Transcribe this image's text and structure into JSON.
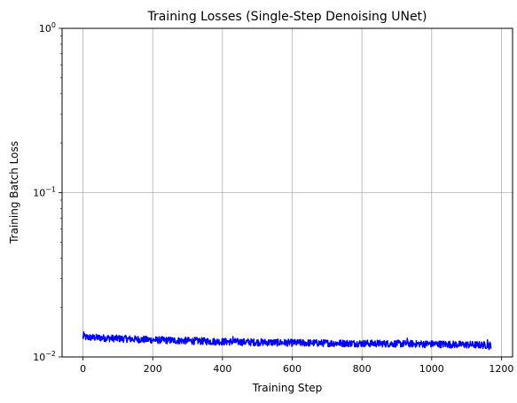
{
  "chart_data": {
    "type": "line",
    "title": "Training Losses (Single-Step Denoising UNet)",
    "xlabel": "Training Step",
    "ylabel": "Training Batch Loss",
    "xlim": [
      -60,
      1232
    ],
    "ylim": [
      0.01,
      1
    ],
    "yscale": "log",
    "grid": true,
    "x_ticks": [
      0,
      200,
      400,
      600,
      800,
      1000,
      1200
    ],
    "y_ticks": [
      {
        "value": 0.01,
        "base": "10",
        "exp": "−2"
      },
      {
        "value": 0.1,
        "base": "10",
        "exp": "−1"
      },
      {
        "value": 1,
        "base": "10",
        "exp": "0"
      }
    ],
    "series": [
      {
        "color": "#0000ff",
        "x_start": 0,
        "x_end": 1170,
        "trend": [
          [
            0,
            0.0132
          ],
          [
            200,
            0.0127
          ],
          [
            400,
            0.0124
          ],
          [
            600,
            0.0122
          ],
          [
            800,
            0.0121
          ],
          [
            1000,
            0.012
          ],
          [
            1170,
            0.0118
          ]
        ],
        "noise": 0.05,
        "spikes": [
          [
            2,
            0.0142
          ],
          [
            5,
            0.0136
          ],
          [
            120,
            0.0134
          ],
          [
            430,
            0.0133
          ],
          [
            930,
            0.013
          ],
          [
            1160,
            0.0127
          ],
          [
            1165,
            0.0111
          ]
        ]
      }
    ]
  }
}
